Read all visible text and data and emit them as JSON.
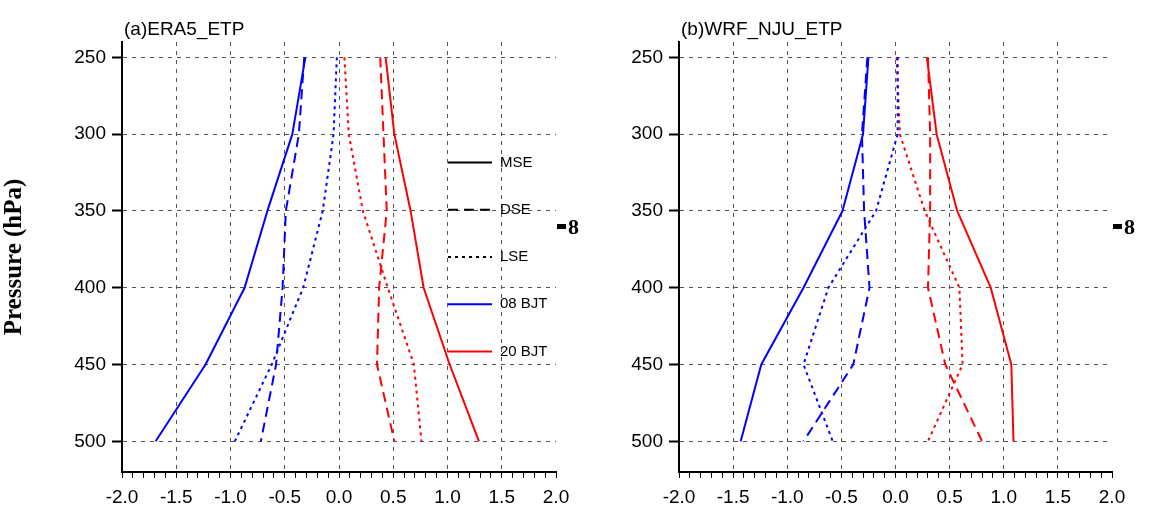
{
  "chart_data": [
    {
      "type": "line",
      "title": "(a)ERA5_ETP",
      "ylabel": "Pressure (hPa)",
      "grid": true,
      "legend": "right",
      "xlim": [
        -2,
        2
      ],
      "ylim": [
        520,
        240
      ],
      "xticks": [
        {
          "value": -2,
          "label": "-2.0"
        },
        {
          "value": -1.9,
          "label": null
        },
        {
          "value": -1.8,
          "label": null
        },
        {
          "value": -1.7,
          "label": null
        },
        {
          "value": -1.6,
          "label": null
        },
        {
          "value": -1.5,
          "label": "-1.5"
        },
        {
          "value": -1.4,
          "label": null
        },
        {
          "value": -1.3,
          "label": null
        },
        {
          "value": -1.2,
          "label": null
        },
        {
          "value": -1.1,
          "label": null
        },
        {
          "value": -1,
          "label": "-1.0"
        },
        {
          "value": -0.9,
          "label": null
        },
        {
          "value": -0.8,
          "label": null
        },
        {
          "value": -0.7,
          "label": null
        },
        {
          "value": -0.6,
          "label": null
        },
        {
          "value": -0.5,
          "label": "-0.5"
        },
        {
          "value": -0.4,
          "label": null
        },
        {
          "value": -0.3,
          "label": null
        },
        {
          "value": -0.2,
          "label": null
        },
        {
          "value": -0.1,
          "label": null
        },
        {
          "value": 0,
          "label": "0.0"
        },
        {
          "value": 0.1,
          "label": null
        },
        {
          "value": 0.2,
          "label": null
        },
        {
          "value": 0.3,
          "label": null
        },
        {
          "value": 0.4,
          "label": null
        },
        {
          "value": 0.5,
          "label": "0.5"
        },
        {
          "value": 0.6,
          "label": null
        },
        {
          "value": 0.7,
          "label": null
        },
        {
          "value": 0.8,
          "label": null
        },
        {
          "value": 0.9,
          "label": null
        },
        {
          "value": 1,
          "label": "1.0"
        },
        {
          "value": 1.1,
          "label": null
        },
        {
          "value": 1.2,
          "label": null
        },
        {
          "value": 1.3,
          "label": null
        },
        {
          "value": 1.4,
          "label": null
        },
        {
          "value": 1.5,
          "label": "1.5"
        },
        {
          "value": 1.6,
          "label": null
        },
        {
          "value": 1.7,
          "label": null
        },
        {
          "value": 1.8,
          "label": null
        },
        {
          "value": 1.9,
          "label": null
        },
        {
          "value": 2,
          "label": "2.0"
        }
      ],
      "yticks": [
        250,
        300,
        350,
        400,
        450,
        500
      ],
      "annotations": [
        "8"
      ],
      "series": [
        {
          "color": "#0000ff",
          "line_style": "solid",
          "x": [
            -0.31,
            -0.43,
            -0.66,
            -0.87,
            -1.23,
            -1.69
          ],
          "values": [
            250,
            300,
            350,
            400,
            450,
            500
          ]
        },
        {
          "color": "#0000ff",
          "line_style": "dashed",
          "x": [
            -0.32,
            -0.37,
            -0.49,
            -0.52,
            -0.58,
            -0.72
          ],
          "values": [
            250,
            300,
            350,
            400,
            450,
            500
          ]
        },
        {
          "color": "#0000ff",
          "line_style": "dotted",
          "x": [
            -0.02,
            -0.05,
            -0.15,
            -0.33,
            -0.62,
            -0.96
          ],
          "values": [
            250,
            300,
            350,
            400,
            450,
            500
          ]
        },
        {
          "color": "#ff0000",
          "line_style": "solid",
          "x": [
            0.43,
            0.51,
            0.66,
            0.78,
            1.02,
            1.29
          ],
          "values": [
            250,
            300,
            350,
            400,
            450,
            500
          ]
        },
        {
          "color": "#ff0000",
          "line_style": "dashed",
          "x": [
            0.38,
            0.41,
            0.44,
            0.37,
            0.35,
            0.51
          ],
          "values": [
            250,
            300,
            350,
            400,
            450,
            500
          ]
        },
        {
          "color": "#ff0000",
          "line_style": "dotted",
          "x": [
            0.05,
            0.09,
            0.22,
            0.45,
            0.69,
            0.76
          ],
          "values": [
            250,
            300,
            350,
            400,
            450,
            500
          ]
        },
        {
          "name": "MSE",
          "color": "#000000",
          "line_style": "solid"
        },
        {
          "name": "DSE",
          "color": "#000000",
          "line_style": "dashed"
        },
        {
          "name": "LSE",
          "color": "#000000",
          "line_style": "dotted"
        },
        {
          "name": "08 BJT",
          "color": "#0000ff",
          "line_style": "solid"
        },
        {
          "name": "20 BJT",
          "color": "#ff0000",
          "line_style": "solid"
        }
      ]
    },
    {
      "type": "line",
      "title": "(b)WRF_NJU_ETP",
      "grid": true,
      "xlim": [
        -2,
        2
      ],
      "ylim": [
        520,
        240
      ],
      "xticks": [
        {
          "value": -2,
          "label": "-2.0"
        },
        {
          "value": -1.9,
          "label": null
        },
        {
          "value": -1.8,
          "label": null
        },
        {
          "value": -1.7,
          "label": null
        },
        {
          "value": -1.6,
          "label": null
        },
        {
          "value": -1.5,
          "label": "-1.5"
        },
        {
          "value": -1.4,
          "label": null
        },
        {
          "value": -1.3,
          "label": null
        },
        {
          "value": -1.2,
          "label": null
        },
        {
          "value": -1.1,
          "label": null
        },
        {
          "value": -1,
          "label": "-1.0"
        },
        {
          "value": -0.9,
          "label": null
        },
        {
          "value": -0.8,
          "label": null
        },
        {
          "value": -0.7,
          "label": null
        },
        {
          "value": -0.6,
          "label": null
        },
        {
          "value": -0.5,
          "label": "-0.5"
        },
        {
          "value": -0.4,
          "label": null
        },
        {
          "value": -0.3,
          "label": null
        },
        {
          "value": -0.2,
          "label": null
        },
        {
          "value": -0.1,
          "label": null
        },
        {
          "value": 0,
          "label": "0.0"
        },
        {
          "value": 0.1,
          "label": null
        },
        {
          "value": 0.2,
          "label": null
        },
        {
          "value": 0.3,
          "label": null
        },
        {
          "value": 0.4,
          "label": null
        },
        {
          "value": 0.5,
          "label": "0.5"
        },
        {
          "value": 0.6,
          "label": null
        },
        {
          "value": 0.7,
          "label": null
        },
        {
          "value": 0.8,
          "label": null
        },
        {
          "value": 0.9,
          "label": null
        },
        {
          "value": 1,
          "label": "1.0"
        },
        {
          "value": 1.1,
          "label": null
        },
        {
          "value": 1.2,
          "label": null
        },
        {
          "value": 1.3,
          "label": null
        },
        {
          "value": 1.4,
          "label": null
        },
        {
          "value": 1.5,
          "label": "1.5"
        },
        {
          "value": 1.6,
          "label": null
        },
        {
          "value": 1.7,
          "label": null
        },
        {
          "value": 1.8,
          "label": null
        },
        {
          "value": 1.9,
          "label": null
        },
        {
          "value": 2,
          "label": "2.0"
        }
      ],
      "yticks": [
        250,
        300,
        350,
        400,
        450,
        500
      ],
      "annotations": [
        "8"
      ],
      "series": [
        {
          "color": "#0000ff",
          "line_style": "solid",
          "x": [
            -0.25,
            -0.3,
            -0.49,
            -0.85,
            -1.24,
            -1.43
          ],
          "values": [
            250,
            300,
            350,
            400,
            450,
            500
          ]
        },
        {
          "color": "#0000ff",
          "line_style": "dashed",
          "x": [
            -0.26,
            -0.31,
            -0.29,
            -0.24,
            -0.39,
            -0.85
          ],
          "values": [
            250,
            300,
            350,
            400,
            450,
            500
          ]
        },
        {
          "color": "#0000ff",
          "line_style": "dotted",
          "x": [
            0.02,
            0.02,
            -0.18,
            -0.62,
            -0.85,
            -0.58
          ],
          "values": [
            250,
            300,
            350,
            400,
            450,
            500
          ]
        },
        {
          "color": "#ff0000",
          "line_style": "solid",
          "x": [
            0.29,
            0.38,
            0.57,
            0.88,
            1.07,
            1.09
          ],
          "values": [
            250,
            300,
            350,
            400,
            450,
            500
          ]
        },
        {
          "color": "#ff0000",
          "line_style": "dashed",
          "x": [
            0.3,
            0.32,
            0.32,
            0.3,
            0.46,
            0.8
          ],
          "values": [
            250,
            300,
            350,
            400,
            450,
            500
          ]
        },
        {
          "color": "#ff0000",
          "line_style": "dotted",
          "x": [
            0.01,
            0.04,
            0.27,
            0.59,
            0.62,
            0.3
          ],
          "values": [
            250,
            300,
            350,
            400,
            450,
            500
          ]
        }
      ]
    }
  ]
}
